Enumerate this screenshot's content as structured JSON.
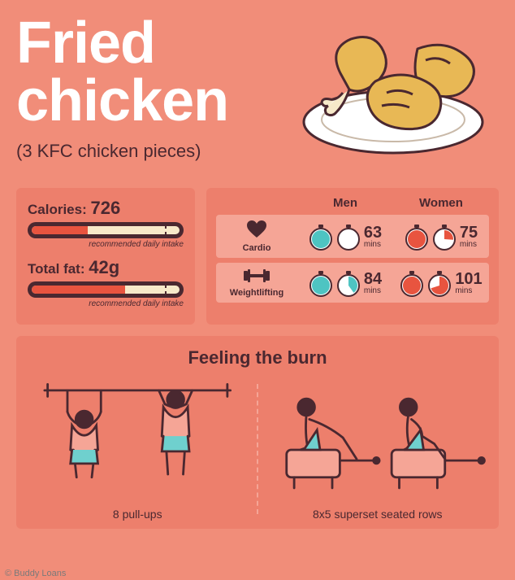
{
  "colors": {
    "background": "#f18d79",
    "panel": "#ed7f6c",
    "panel_light": "#f5a596",
    "text_dark": "#4a2830",
    "white": "#ffffff",
    "cream": "#f7e9c9",
    "red": "#e8543f",
    "teal": "#4ec4c2",
    "chicken_fill": "#e8b855",
    "chicken_stroke": "#4a2830"
  },
  "title_line1": "Fried",
  "title_line2": "chicken",
  "subtitle": "(3 KFC chicken pieces)",
  "nutrition": {
    "calories": {
      "label": "Calories: ",
      "value": "726",
      "fill_pct": 36,
      "dash_pct": 88,
      "sub": "recommended daily intake"
    },
    "fat": {
      "label": "Total fat: ",
      "value": "42g",
      "fill_pct": 60,
      "dash_pct": 88,
      "sub": "recommended daily intake"
    }
  },
  "exercise": {
    "head_men": "Men",
    "head_women": "Women",
    "rows": [
      {
        "icon": "heart",
        "label": "Cardio",
        "men": {
          "n": "63",
          "u": "mins",
          "w1": {
            "c": "#4ec4c2",
            "frac": 1.0
          },
          "w2": {
            "c": "#ffffff",
            "frac": 0.1
          }
        },
        "women": {
          "n": "75",
          "u": "mins",
          "w1": {
            "c": "#e8543f",
            "frac": 1.0
          },
          "w2": {
            "c": "#e8543f",
            "frac": 0.26
          }
        }
      },
      {
        "icon": "dumbbell",
        "label": "Weightlifting",
        "men": {
          "n": "84",
          "u": "mins",
          "w1": {
            "c": "#4ec4c2",
            "frac": 1.0
          },
          "w2": {
            "c": "#4ec4c2",
            "frac": 0.4
          }
        },
        "women": {
          "n": "101",
          "u": "mins",
          "w1": {
            "c": "#e8543f",
            "frac": 1.0
          },
          "w2": {
            "c": "#e8543f",
            "frac": 0.7
          }
        }
      }
    ]
  },
  "burn": {
    "title": "Feeling the burn",
    "left_caption": "8 pull-ups",
    "right_caption": "8x5 superset seated rows"
  },
  "credit": "© Buddy Loans"
}
